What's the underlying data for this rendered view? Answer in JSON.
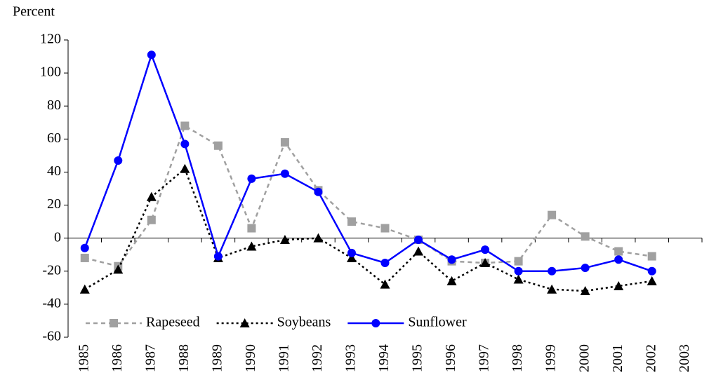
{
  "chart_data": {
    "type": "line",
    "y_label": "Percent",
    "categories": [
      "1985",
      "1986",
      "1987",
      "1988",
      "1989",
      "1990",
      "1991",
      "1992",
      "1993",
      "1994",
      "1995",
      "1996",
      "1997",
      "1998",
      "1999",
      "2000",
      "2001",
      "2002",
      "2003"
    ],
    "series": [
      {
        "name": "Rapeseed",
        "color": "#a0a0a0",
        "dash": "dashed",
        "marker": "square",
        "values": [
          -12,
          -17,
          11,
          68,
          56,
          6,
          58,
          29,
          10,
          6,
          -1,
          -14,
          -15,
          -14,
          14,
          1,
          -8,
          -11,
          null
        ]
      },
      {
        "name": "Soybeans",
        "color": "#000000",
        "dash": "dotted",
        "marker": "triangle",
        "values": [
          -31,
          -19,
          25,
          42,
          -12,
          -5,
          -1,
          0,
          -12,
          -28,
          -8,
          -26,
          -15,
          -25,
          -31,
          -32,
          -29,
          -26,
          null
        ]
      },
      {
        "name": "Sunflower",
        "color": "#0000ff",
        "dash": "solid",
        "marker": "circle",
        "values": [
          -6,
          47,
          111,
          57,
          -11,
          36,
          39,
          28,
          -9,
          -15,
          -1,
          -13,
          -7,
          -20,
          -20,
          -18,
          -13,
          -20,
          null
        ]
      }
    ],
    "ylim": [
      -60,
      120
    ],
    "yticks": [
      -60,
      -40,
      -20,
      0,
      20,
      40,
      60,
      80,
      100,
      120
    ],
    "legend": "lower-left"
  }
}
